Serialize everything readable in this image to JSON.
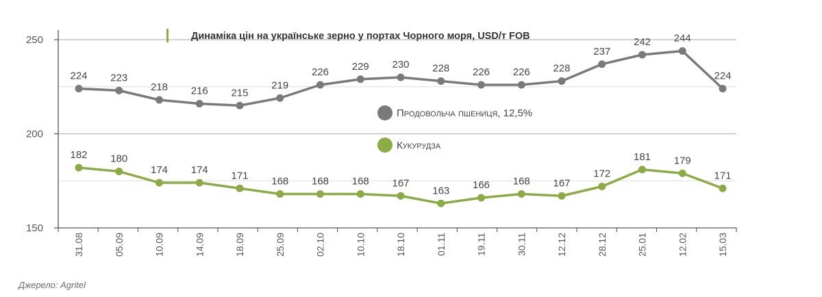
{
  "chart_data": {
    "type": "line",
    "title": "Динаміка цін на українське зерно у портах Чорного моря, USD/т FOB",
    "xlabel": "",
    "ylabel": "",
    "ylim": [
      150,
      250
    ],
    "yticks": [
      150,
      200,
      250
    ],
    "categories": [
      "31.08",
      "05.09",
      "10.09",
      "14.09",
      "18.09",
      "25.09",
      "02.10",
      "10.10",
      "18.10",
      "01.11",
      "19.11",
      "30.11",
      "12.12",
      "28.12",
      "25.01",
      "12.02",
      "15.03"
    ],
    "series": [
      {
        "name": "Продовольча пшениця, 12,5%",
        "color": "#7a7a7a",
        "values": [
          224,
          223,
          218,
          216,
          215,
          219,
          226,
          229,
          230,
          228,
          226,
          226,
          228,
          237,
          242,
          244,
          224
        ]
      },
      {
        "name": "Кукурудза",
        "color": "#8aab46",
        "values": [
          182,
          180,
          174,
          174,
          171,
          168,
          168,
          168,
          167,
          163,
          166,
          168,
          167,
          172,
          181,
          179,
          171
        ]
      }
    ],
    "grid": true,
    "legend_position": "center-right",
    "accent_color": "#8aab46"
  },
  "source": "Джерело: Agritel"
}
